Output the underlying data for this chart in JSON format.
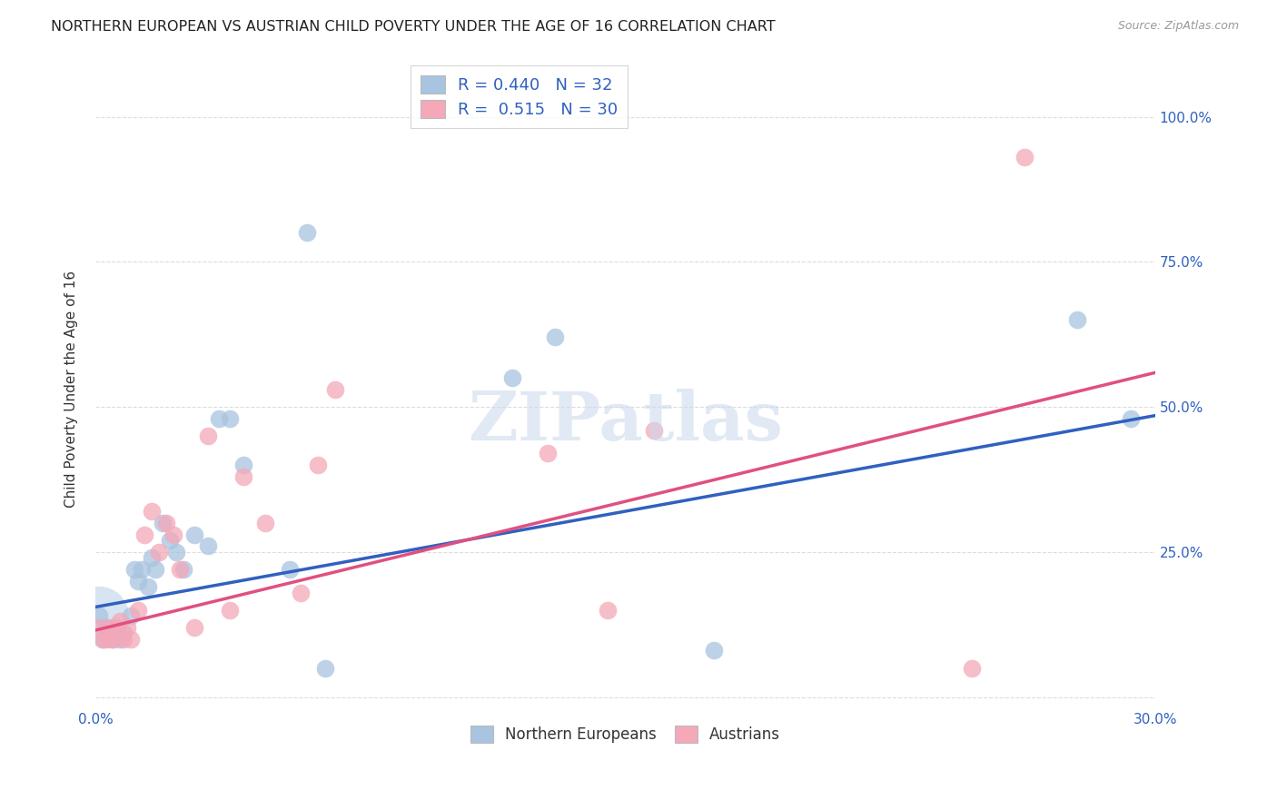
{
  "title": "NORTHERN EUROPEAN VS AUSTRIAN CHILD POVERTY UNDER THE AGE OF 16 CORRELATION CHART",
  "source": "Source: ZipAtlas.com",
  "ylabel": "Child Poverty Under the Age of 16",
  "xlim": [
    0.0,
    0.3
  ],
  "ylim": [
    -0.02,
    1.08
  ],
  "yticks": [
    0.0,
    0.25,
    0.5,
    0.75,
    1.0
  ],
  "xticks": [
    0.0,
    0.06,
    0.12,
    0.18,
    0.24,
    0.3
  ],
  "xtick_labels": [
    "0.0%",
    "",
    "",
    "",
    "",
    "30.0%"
  ],
  "ytick_labels_right": [
    "",
    "25.0%",
    "50.0%",
    "75.0%",
    "100.0%"
  ],
  "blue_R": 0.44,
  "blue_N": 32,
  "pink_R": 0.515,
  "pink_N": 30,
  "blue_color": "#a8c4e0",
  "pink_color": "#f4a8b8",
  "blue_line_color": "#3060c0",
  "pink_line_color": "#e05080",
  "watermark": "ZIPatlas",
  "blue_scatter_x": [
    0.001,
    0.002,
    0.003,
    0.004,
    0.005,
    0.006,
    0.007,
    0.008,
    0.01,
    0.011,
    0.012,
    0.013,
    0.015,
    0.016,
    0.017,
    0.019,
    0.021,
    0.023,
    0.025,
    0.028,
    0.032,
    0.035,
    0.038,
    0.042,
    0.055,
    0.06,
    0.065,
    0.118,
    0.13,
    0.175,
    0.278,
    0.293
  ],
  "blue_scatter_y": [
    0.14,
    0.1,
    0.12,
    0.11,
    0.1,
    0.12,
    0.1,
    0.11,
    0.14,
    0.22,
    0.2,
    0.22,
    0.19,
    0.24,
    0.22,
    0.3,
    0.27,
    0.25,
    0.22,
    0.28,
    0.26,
    0.48,
    0.48,
    0.4,
    0.22,
    0.8,
    0.05,
    0.55,
    0.62,
    0.08,
    0.65,
    0.48
  ],
  "pink_scatter_x": [
    0.001,
    0.002,
    0.003,
    0.004,
    0.005,
    0.006,
    0.007,
    0.008,
    0.009,
    0.01,
    0.012,
    0.014,
    0.016,
    0.018,
    0.02,
    0.022,
    0.024,
    0.028,
    0.032,
    0.038,
    0.042,
    0.048,
    0.058,
    0.063,
    0.068,
    0.128,
    0.145,
    0.158,
    0.248,
    0.263
  ],
  "pink_scatter_y": [
    0.12,
    0.1,
    0.1,
    0.12,
    0.1,
    0.12,
    0.13,
    0.1,
    0.12,
    0.1,
    0.15,
    0.28,
    0.32,
    0.25,
    0.3,
    0.28,
    0.22,
    0.12,
    0.45,
    0.15,
    0.38,
    0.3,
    0.18,
    0.4,
    0.53,
    0.42,
    0.15,
    0.46,
    0.05,
    0.93
  ],
  "grid_color": "#dddddd",
  "background_color": "#ffffff",
  "title_fontsize": 11.5,
  "axis_label_fontsize": 11,
  "tick_fontsize": 11,
  "legend_fontsize": 13,
  "blue_line_intercept": 0.155,
  "blue_line_slope": 1.1,
  "pink_line_intercept": 0.115,
  "pink_line_slope": 1.48
}
